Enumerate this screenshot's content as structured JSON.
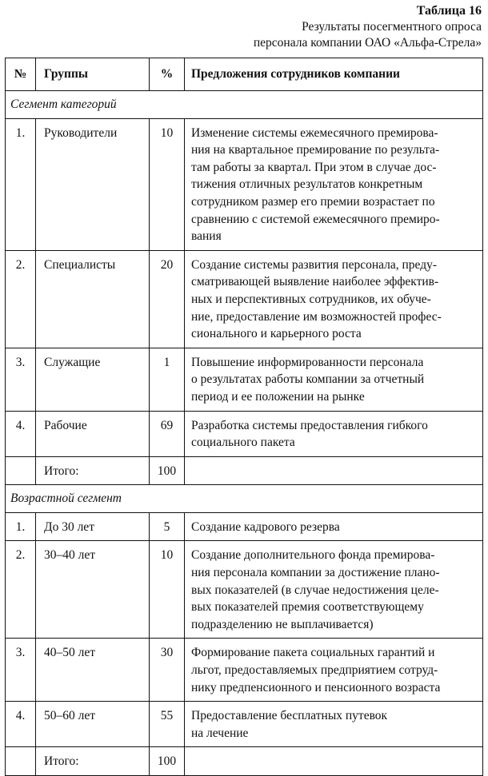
{
  "caption": {
    "number": "Таблица 16",
    "line1": "Результаты посегментного опроса",
    "line2": "персонала компании ОАО «Альфа-Стрела»"
  },
  "headers": [
    "№",
    "Группы",
    "%",
    "Предложения сотрудников компании"
  ],
  "segments": [
    {
      "title": "Сегмент категорий",
      "rows": [
        {
          "num": "1.",
          "group": "Руководители",
          "percent": "10",
          "proposal": [
            "Изменение системы ежемесячного премирова-",
            "ния на квартальное премирование по результа-",
            "там работы за квартал. При этом в случае дос-",
            "тижения отличных результатов конкретным",
            "сотрудником размер его премии возрастает по",
            "сравнению с системой ежемесячного премиро-",
            "вания"
          ]
        },
        {
          "num": "2.",
          "group": "Специалисты",
          "percent": "20",
          "proposal": [
            "Создание системы развития персонала, преду-",
            "сматривающей выявление наиболее эффектив-",
            "ных и перспективных сотрудников, их обуче-",
            "ние, предоставление им возможностей профес-",
            "сионального и карьерного роста"
          ]
        },
        {
          "num": "3.",
          "group": "Служащие",
          "percent": "1",
          "proposal": [
            "Повышение информированности персонала",
            "о результатах работы компании за отчетный",
            "период и ее положении на рынке"
          ]
        },
        {
          "num": "4.",
          "group": "Рабочие",
          "percent": "69",
          "proposal": [
            "Разработка системы предоставления гибкого",
            "социального пакета"
          ]
        },
        {
          "num": "",
          "group": "Итого:",
          "percent": "100",
          "proposal": []
        }
      ]
    },
    {
      "title": "Возрастной сегмент",
      "rows": [
        {
          "num": "1.",
          "group": "До 30 лет",
          "percent": "5",
          "proposal": [
            "Создание кадрового резерва"
          ]
        },
        {
          "num": "2.",
          "group": "30–40 лет",
          "percent": "10",
          "proposal": [
            "Создание дополнительного фонда премирова-",
            "ния персонала компании за достижение плано-",
            "вых показателей (в случае недостижения целе-",
            "вых показателей премия соответствующему",
            "подразделению не выплачивается)"
          ]
        },
        {
          "num": "3.",
          "group": "40–50 лет",
          "percent": "30",
          "proposal": [
            "Формирование пакета социальных гарантий и",
            "льгот, предоставляемых предприятием сотруд-",
            "нику предпенсионного и пенсионного возраста"
          ]
        },
        {
          "num": "4.",
          "group": "50–60 лет",
          "percent": "55",
          "proposal": [
            "Предоставление бесплатных путевок",
            "на лечение"
          ]
        },
        {
          "num": "",
          "group": "Итого:",
          "percent": "100",
          "proposal": []
        }
      ]
    }
  ]
}
